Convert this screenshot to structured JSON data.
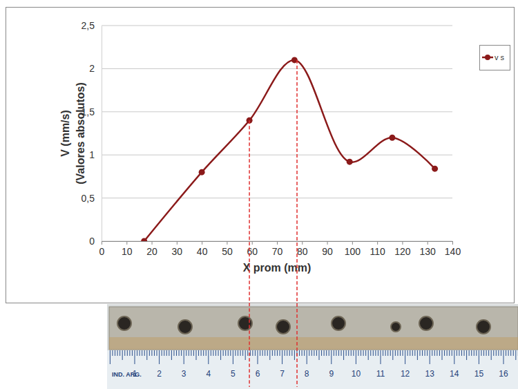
{
  "chart_data": {
    "type": "line",
    "x_label": "X prom (mm)",
    "y_label": [
      "V (mm/s)",
      "(Valores absolutos)"
    ],
    "x": [
      17,
      40,
      59,
      77,
      99,
      116,
      133
    ],
    "series": [
      {
        "name": "v s",
        "color": "#8b1a1a",
        "marker": "circle",
        "line_style": "smooth",
        "values": [
          0,
          0.8,
          1.4,
          2.1,
          0.92,
          1.2,
          0.84
        ]
      }
    ],
    "xlim": [
      0,
      140
    ],
    "xticks": [
      0,
      10,
      20,
      30,
      40,
      50,
      60,
      70,
      80,
      90,
      100,
      110,
      120,
      130,
      140
    ],
    "ylim": [
      0,
      2.5
    ],
    "yticks": [
      0,
      {
        "value": 0.5,
        "label": "0,5"
      },
      1,
      {
        "value": 1.5,
        "label": "1,5"
      },
      2,
      {
        "value": 2.5,
        "label": "2,5"
      }
    ],
    "grid": true,
    "legend": "right",
    "annotations": [
      {
        "type": "vline",
        "x": 59,
        "y": 1.4,
        "color": "#e03030",
        "line_style": "dashed"
      },
      {
        "type": "vline",
        "x": 78,
        "y": 2.1,
        "color": "#e03030",
        "line_style": "dashed"
      }
    ]
  },
  "photo": {
    "ruler_label": "IND. ARG.",
    "ruler_numbers": [
      1,
      2,
      3,
      4,
      5,
      6,
      7,
      8,
      9,
      10,
      11,
      12,
      13,
      14,
      15,
      16
    ]
  }
}
